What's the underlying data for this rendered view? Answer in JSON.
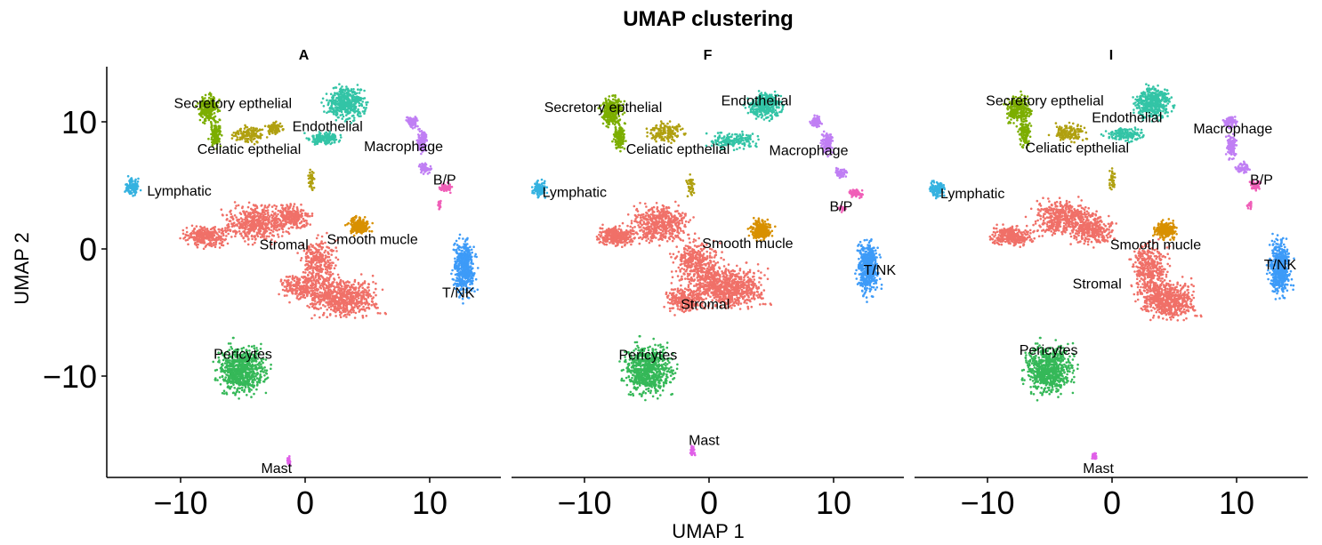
{
  "chart_data": {
    "type": "scatter",
    "title": "UMAP clustering",
    "xlabel": "UMAP 1",
    "ylabel": "UMAP 2",
    "xlim": [
      -16,
      16
    ],
    "ylim": [
      -18,
      14.5
    ],
    "x_ticks": [
      -10,
      0,
      10
    ],
    "x_tick_labels": [
      "−10",
      "0",
      "10"
    ],
    "y_ticks": [
      10,
      0,
      -10
    ],
    "y_tick_labels": [
      "10",
      "0",
      "−10"
    ],
    "grid": false,
    "legend": "none",
    "clusters": [
      {
        "name": "Stromal",
        "color": "#F07068"
      },
      {
        "name": "Pericytes",
        "color": "#35B858"
      },
      {
        "name": "Secretory epthelial",
        "color": "#7CAE00"
      },
      {
        "name": "Celiatic epthelial",
        "color": "#B0A010"
      },
      {
        "name": "Endothelial",
        "color": "#33C4A6"
      },
      {
        "name": "Macrophage",
        "color": "#C07FF4"
      },
      {
        "name": "B/P",
        "color": "#F05FB8"
      },
      {
        "name": "Lymphatic",
        "color": "#35B2E0"
      },
      {
        "name": "Smooth mucle",
        "color": "#D89000"
      },
      {
        "name": "T/NK",
        "color": "#3D9BF8"
      },
      {
        "name": "Mast",
        "color": "#E060E8"
      }
    ],
    "panels": [
      {
        "title": "A",
        "labels": [
          {
            "text": "Secretory epthelial",
            "x": -5.8,
            "y": 11.5
          },
          {
            "text": "Endothelial",
            "x": 1.8,
            "y": 9.7
          },
          {
            "text": "Celiatic epthelial",
            "x": -4.5,
            "y": 7.9
          },
          {
            "text": "Macrophage",
            "x": 7.9,
            "y": 8.1
          },
          {
            "text": "B/P",
            "x": 11.2,
            "y": 5.5
          },
          {
            "text": "Lymphatic",
            "x": -10.1,
            "y": 4.6
          },
          {
            "text": "Stromal",
            "x": -1.7,
            "y": 0.4
          },
          {
            "text": "Smooth mucle",
            "x": 5.4,
            "y": 0.8
          },
          {
            "text": "T/NK",
            "x": 12.3,
            "y": -3.4
          },
          {
            "text": "Pericytes",
            "x": -5.0,
            "y": -8.2
          },
          {
            "text": "Mast",
            "x": -2.3,
            "y": -17.2
          }
        ]
      },
      {
        "title": "F",
        "labels": [
          {
            "text": "Secretory epthelial",
            "x": -8.5,
            "y": 11.2
          },
          {
            "text": "Endothelial",
            "x": 3.8,
            "y": 11.7
          },
          {
            "text": "Celiatic epthelial",
            "x": -2.5,
            "y": 7.9
          },
          {
            "text": "Macrophage",
            "x": 8.0,
            "y": 7.8
          },
          {
            "text": "B/P",
            "x": 10.6,
            "y": 3.4
          },
          {
            "text": "Lymphatic",
            "x": -10.8,
            "y": 4.5
          },
          {
            "text": "Smooth mucle",
            "x": 3.1,
            "y": 0.5
          },
          {
            "text": "T/NK",
            "x": 13.7,
            "y": -1.6
          },
          {
            "text": "Stromal",
            "x": -0.3,
            "y": -4.3
          },
          {
            "text": "Pericytes",
            "x": -4.9,
            "y": -8.3
          },
          {
            "text": "Mast",
            "x": -0.4,
            "y": -15.0
          }
        ]
      },
      {
        "title": "I",
        "labels": [
          {
            "text": "Secretory epthelial",
            "x": -5.4,
            "y": 11.7
          },
          {
            "text": "Endothelial",
            "x": 1.2,
            "y": 10.4
          },
          {
            "text": "Celiatic epthelial",
            "x": -2.8,
            "y": 8.0
          },
          {
            "text": "Macrophage",
            "x": 9.7,
            "y": 9.5
          },
          {
            "text": "B/P",
            "x": 12.0,
            "y": 5.5
          },
          {
            "text": "Lymphatic",
            "x": -11.2,
            "y": 4.4
          },
          {
            "text": "Smooth mucle",
            "x": 3.5,
            "y": 0.4
          },
          {
            "text": "T/NK",
            "x": 13.5,
            "y": -1.2
          },
          {
            "text": "Stromal",
            "x": -1.2,
            "y": -2.7
          },
          {
            "text": "Pericytes",
            "x": -5.1,
            "y": -7.9
          },
          {
            "text": "Mast",
            "x": -1.1,
            "y": -17.2
          }
        ]
      }
    ]
  }
}
